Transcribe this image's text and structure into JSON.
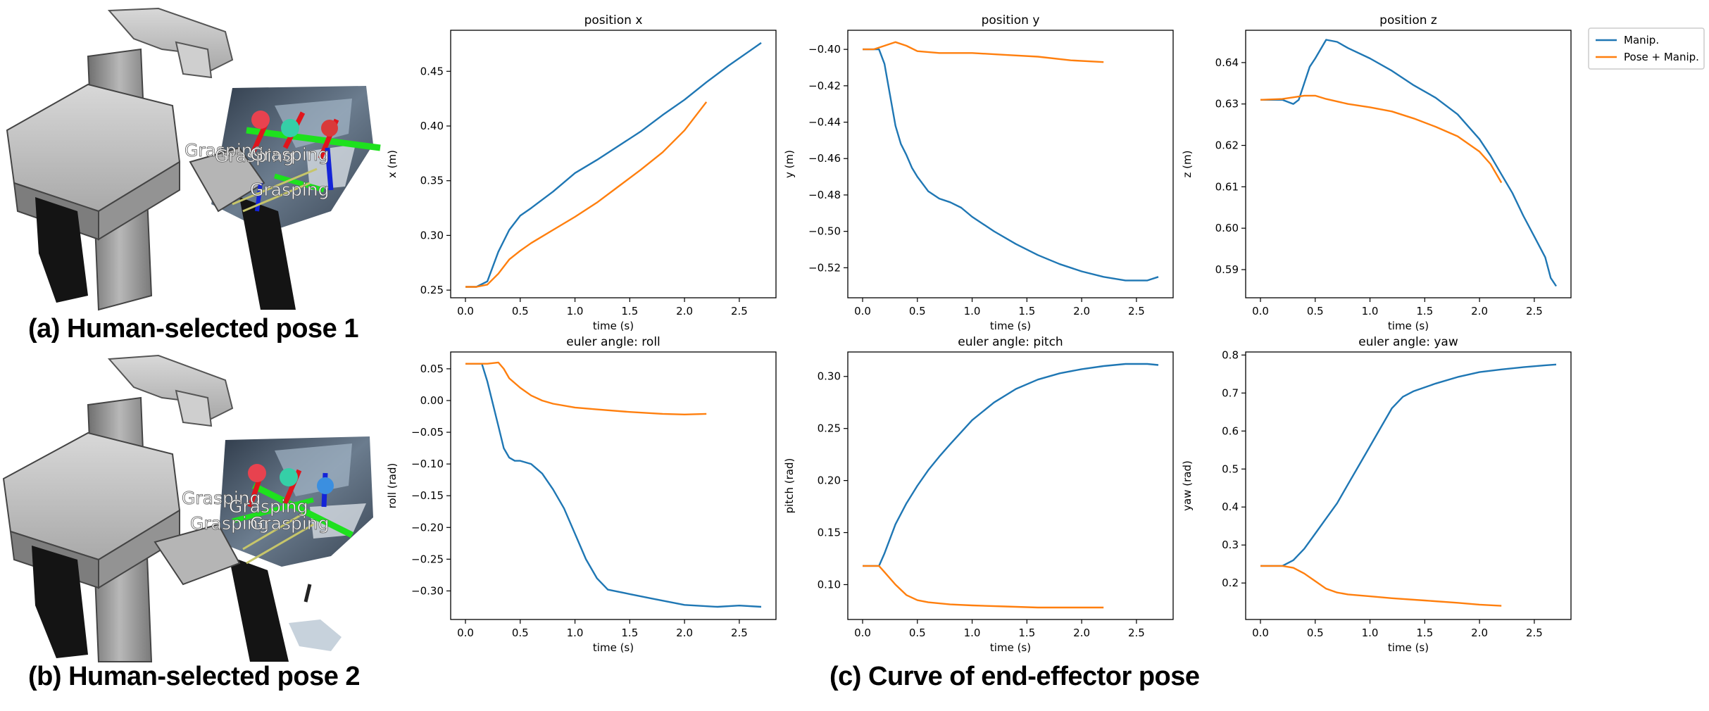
{
  "captions": {
    "a": "(a) Human-selected pose 1",
    "b": "(b) Human-selected pose 2",
    "c": "(c) Curve of end-effector pose"
  },
  "scene_labels": {
    "a": [
      "Grasping",
      "Grasping",
      "Grasping",
      "Grasping"
    ],
    "b": [
      "Grasping",
      "Grasping",
      "Grasping",
      "Grasping"
    ]
  },
  "legend": {
    "placement": "right of top-right subplot",
    "entries": [
      {
        "name": "Manip.",
        "color": "#1f77b4"
      },
      {
        "name": "Pose + Manip.",
        "color": "#ff7f0e"
      }
    ]
  },
  "chart_data": [
    {
      "type": "line",
      "title": "position x",
      "xlabel": "time (s)",
      "ylabel": "x (m)",
      "xlim": [
        -0.135,
        2.835
      ],
      "ylim": [
        0.243,
        0.4875
      ],
      "xticks": [
        0.0,
        0.5,
        1.0,
        1.5,
        2.0,
        2.5
      ],
      "xticklabels": [
        "0.0",
        "0.5",
        "1.0",
        "1.5",
        "2.0",
        "2.5"
      ],
      "yticks": [
        0.25,
        0.3,
        0.35,
        0.4,
        0.45
      ],
      "yticklabels": [
        "0.25",
        "0.30",
        "0.35",
        "0.40",
        "0.45"
      ],
      "series": [
        {
          "name": "Manip.",
          "color": "#1f77b4",
          "x": [
            0,
            0.1,
            0.2,
            0.3,
            0.4,
            0.5,
            0.6,
            0.8,
            1.0,
            1.2,
            1.4,
            1.6,
            1.8,
            2.0,
            2.2,
            2.4,
            2.6,
            2.7
          ],
          "y": [
            0.253,
            0.253,
            0.258,
            0.285,
            0.305,
            0.318,
            0.325,
            0.34,
            0.357,
            0.369,
            0.382,
            0.395,
            0.41,
            0.424,
            0.44,
            0.455,
            0.469,
            0.476
          ]
        },
        {
          "name": "Pose + Manip.",
          "color": "#ff7f0e",
          "x": [
            0,
            0.1,
            0.2,
            0.3,
            0.4,
            0.5,
            0.6,
            0.8,
            1.0,
            1.2,
            1.4,
            1.6,
            1.8,
            2.0,
            2.2
          ],
          "y": [
            0.253,
            0.253,
            0.255,
            0.265,
            0.278,
            0.286,
            0.293,
            0.305,
            0.317,
            0.33,
            0.345,
            0.36,
            0.376,
            0.396,
            0.422
          ]
        }
      ]
    },
    {
      "type": "line",
      "title": "position y",
      "xlabel": "time (s)",
      "ylabel": "y (m)",
      "xlim": [
        -0.135,
        2.835
      ],
      "ylim": [
        -0.5365,
        -0.3895
      ],
      "xticks": [
        0.0,
        0.5,
        1.0,
        1.5,
        2.0,
        2.5
      ],
      "xticklabels": [
        "0.0",
        "0.5",
        "1.0",
        "1.5",
        "2.0",
        "2.5"
      ],
      "yticks": [
        -0.52,
        -0.5,
        -0.48,
        -0.46,
        -0.44,
        -0.42,
        -0.4
      ],
      "yticklabels": [
        "−0.52",
        "−0.50",
        "−0.48",
        "−0.46",
        "−0.44",
        "−0.42",
        "−0.40"
      ],
      "series": [
        {
          "name": "Manip.",
          "color": "#1f77b4",
          "x": [
            0,
            0.15,
            0.2,
            0.25,
            0.3,
            0.35,
            0.4,
            0.45,
            0.5,
            0.6,
            0.7,
            0.8,
            0.9,
            1.0,
            1.2,
            1.4,
            1.6,
            1.8,
            2.0,
            2.2,
            2.4,
            2.6,
            2.7
          ],
          "y": [
            -0.4,
            -0.4,
            -0.408,
            -0.425,
            -0.442,
            -0.452,
            -0.458,
            -0.465,
            -0.47,
            -0.478,
            -0.482,
            -0.484,
            -0.487,
            -0.492,
            -0.5,
            -0.507,
            -0.513,
            -0.518,
            -0.522,
            -0.525,
            -0.527,
            -0.527,
            -0.525
          ]
        },
        {
          "name": "Pose + Manip.",
          "color": "#ff7f0e",
          "x": [
            0,
            0.1,
            0.2,
            0.3,
            0.4,
            0.5,
            0.7,
            1.0,
            1.3,
            1.6,
            1.9,
            2.2
          ],
          "y": [
            -0.4,
            -0.4,
            -0.398,
            -0.396,
            -0.398,
            -0.401,
            -0.402,
            -0.402,
            -0.403,
            -0.404,
            -0.406,
            -0.407
          ]
        }
      ]
    },
    {
      "type": "line",
      "title": "position z",
      "xlabel": "time (s)",
      "ylabel": "z (m)",
      "xlim": [
        -0.135,
        2.835
      ],
      "ylim": [
        0.5832,
        0.6478
      ],
      "xticks": [
        0.0,
        0.5,
        1.0,
        1.5,
        2.0,
        2.5
      ],
      "xticklabels": [
        "0.0",
        "0.5",
        "1.0",
        "1.5",
        "2.0",
        "2.5"
      ],
      "yticks": [
        0.59,
        0.6,
        0.61,
        0.62,
        0.63,
        0.64
      ],
      "yticklabels": [
        "0.59",
        "0.60",
        "0.61",
        "0.62",
        "0.63",
        "0.64"
      ],
      "series": [
        {
          "name": "Manip.",
          "color": "#1f77b4",
          "x": [
            0,
            0.2,
            0.3,
            0.35,
            0.4,
            0.45,
            0.5,
            0.6,
            0.7,
            0.8,
            1.0,
            1.2,
            1.4,
            1.6,
            1.8,
            2.0,
            2.1,
            2.2,
            2.3,
            2.4,
            2.5,
            2.6,
            2.65,
            2.7
          ],
          "y": [
            0.631,
            0.631,
            0.63,
            0.631,
            0.635,
            0.639,
            0.641,
            0.6455,
            0.645,
            0.6435,
            0.641,
            0.638,
            0.6345,
            0.6315,
            0.6275,
            0.6215,
            0.6175,
            0.613,
            0.6085,
            0.603,
            0.598,
            0.593,
            0.588,
            0.586
          ]
        },
        {
          "name": "Pose + Manip.",
          "color": "#ff7f0e",
          "x": [
            0,
            0.2,
            0.4,
            0.5,
            0.6,
            0.8,
            1.0,
            1.2,
            1.4,
            1.6,
            1.8,
            2.0,
            2.1,
            2.2
          ],
          "y": [
            0.631,
            0.6312,
            0.632,
            0.632,
            0.6312,
            0.63,
            0.6292,
            0.6282,
            0.6265,
            0.6245,
            0.6222,
            0.6185,
            0.6155,
            0.611
          ]
        }
      ]
    },
    {
      "type": "line",
      "title": "euler angle: roll",
      "xlabel": "time (s)",
      "ylabel": "roll (rad)",
      "xlim": [
        -0.135,
        2.835
      ],
      "ylim": [
        -0.345,
        0.0765
      ],
      "xticks": [
        0.0,
        0.5,
        1.0,
        1.5,
        2.0,
        2.5
      ],
      "xticklabels": [
        "0.0",
        "0.5",
        "1.0",
        "1.5",
        "2.0",
        "2.5"
      ],
      "yticks": [
        -0.3,
        -0.25,
        -0.2,
        -0.15,
        -0.1,
        -0.05,
        0.0,
        0.05
      ],
      "yticklabels": [
        "−0.30",
        "−0.25",
        "−0.20",
        "−0.15",
        "−0.10",
        "−0.05",
        "0.00",
        "0.05"
      ],
      "series": [
        {
          "name": "Manip.",
          "color": "#1f77b4",
          "x": [
            0,
            0.15,
            0.2,
            0.3,
            0.35,
            0.4,
            0.45,
            0.5,
            0.6,
            0.7,
            0.8,
            0.9,
            1.0,
            1.1,
            1.2,
            1.3,
            1.5,
            1.7,
            2.0,
            2.3,
            2.5,
            2.7
          ],
          "y": [
            0.058,
            0.058,
            0.03,
            -0.04,
            -0.075,
            -0.09,
            -0.095,
            -0.095,
            -0.1,
            -0.115,
            -0.14,
            -0.17,
            -0.21,
            -0.25,
            -0.28,
            -0.298,
            -0.305,
            -0.312,
            -0.322,
            -0.325,
            -0.323,
            -0.325
          ]
        },
        {
          "name": "Pose + Manip.",
          "color": "#ff7f0e",
          "x": [
            0,
            0.2,
            0.3,
            0.35,
            0.4,
            0.5,
            0.6,
            0.7,
            0.8,
            1.0,
            1.2,
            1.5,
            1.8,
            2.0,
            2.2
          ],
          "y": [
            0.058,
            0.058,
            0.06,
            0.05,
            0.035,
            0.02,
            0.008,
            0.0,
            -0.005,
            -0.011,
            -0.014,
            -0.018,
            -0.021,
            -0.022,
            -0.021
          ]
        }
      ]
    },
    {
      "type": "line",
      "title": "euler angle: pitch",
      "xlabel": "time (s)",
      "ylabel": "pitch (rad)",
      "xlim": [
        -0.135,
        2.835
      ],
      "ylim": [
        0.0665,
        0.3235
      ],
      "xticks": [
        0.0,
        0.5,
        1.0,
        1.5,
        2.0,
        2.5
      ],
      "xticklabels": [
        "0.0",
        "0.5",
        "1.0",
        "1.5",
        "2.0",
        "2.5"
      ],
      "yticks": [
        0.1,
        0.15,
        0.2,
        0.25,
        0.3
      ],
      "yticklabels": [
        "0.10",
        "0.15",
        "0.20",
        "0.25",
        "0.30"
      ],
      "series": [
        {
          "name": "Manip.",
          "color": "#1f77b4",
          "x": [
            0,
            0.15,
            0.2,
            0.3,
            0.4,
            0.5,
            0.6,
            0.7,
            0.8,
            1.0,
            1.2,
            1.4,
            1.6,
            1.8,
            2.0,
            2.2,
            2.4,
            2.6,
            2.7
          ],
          "y": [
            0.118,
            0.118,
            0.13,
            0.158,
            0.178,
            0.195,
            0.21,
            0.223,
            0.235,
            0.258,
            0.275,
            0.288,
            0.297,
            0.303,
            0.307,
            0.31,
            0.312,
            0.312,
            0.311
          ]
        },
        {
          "name": "Pose + Manip.",
          "color": "#ff7f0e",
          "x": [
            0,
            0.15,
            0.2,
            0.3,
            0.4,
            0.5,
            0.6,
            0.8,
            1.0,
            1.3,
            1.6,
            1.9,
            2.2
          ],
          "y": [
            0.118,
            0.118,
            0.112,
            0.1,
            0.09,
            0.085,
            0.083,
            0.081,
            0.08,
            0.079,
            0.078,
            0.078,
            0.078
          ]
        }
      ]
    },
    {
      "type": "line",
      "title": "euler angle: yaw",
      "xlabel": "time (s)",
      "ylabel": "yaw (rad)",
      "xlim": [
        -0.135,
        2.835
      ],
      "ylim": [
        0.104,
        0.808
      ],
      "xticks": [
        0.0,
        0.5,
        1.0,
        1.5,
        2.0,
        2.5
      ],
      "xticklabels": [
        "0.0",
        "0.5",
        "1.0",
        "1.5",
        "2.0",
        "2.5"
      ],
      "yticks": [
        0.2,
        0.3,
        0.4,
        0.5,
        0.6,
        0.7,
        0.8
      ],
      "yticklabels": [
        "0.2",
        "0.3",
        "0.4",
        "0.5",
        "0.6",
        "0.7",
        "0.8"
      ],
      "series": [
        {
          "name": "Manip.",
          "color": "#1f77b4",
          "x": [
            0,
            0.2,
            0.3,
            0.4,
            0.5,
            0.6,
            0.7,
            0.8,
            0.9,
            1.0,
            1.1,
            1.2,
            1.3,
            1.4,
            1.6,
            1.8,
            2.0,
            2.2,
            2.4,
            2.6,
            2.7
          ],
          "y": [
            0.245,
            0.245,
            0.26,
            0.29,
            0.33,
            0.37,
            0.41,
            0.46,
            0.51,
            0.56,
            0.61,
            0.66,
            0.69,
            0.705,
            0.725,
            0.742,
            0.755,
            0.762,
            0.768,
            0.773,
            0.775
          ]
        },
        {
          "name": "Pose + Manip.",
          "color": "#ff7f0e",
          "x": [
            0,
            0.2,
            0.3,
            0.4,
            0.5,
            0.6,
            0.7,
            0.8,
            1.0,
            1.2,
            1.5,
            1.8,
            2.0,
            2.2
          ],
          "y": [
            0.245,
            0.245,
            0.24,
            0.225,
            0.205,
            0.185,
            0.175,
            0.17,
            0.165,
            0.16,
            0.154,
            0.148,
            0.143,
            0.14
          ]
        }
      ]
    }
  ]
}
